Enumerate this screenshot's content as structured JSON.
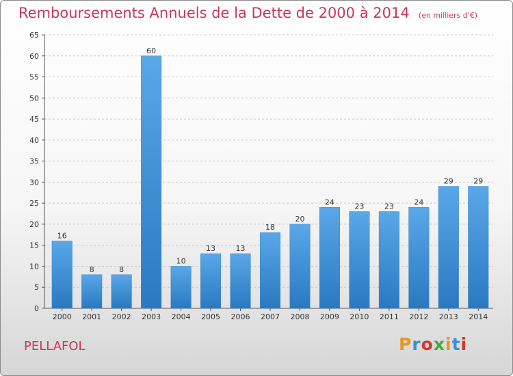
{
  "chart_data": {
    "type": "bar",
    "title": "Remboursements Annuels de la Dette de 2000 à 2014",
    "subtitle": "(en milliers d'€)",
    "categories": [
      "2000",
      "2001",
      "2002",
      "2003",
      "2004",
      "2005",
      "2006",
      "2007",
      "2008",
      "2009",
      "2010",
      "2011",
      "2012",
      "2013",
      "2014"
    ],
    "values": [
      16,
      8,
      8,
      60,
      10,
      13,
      13,
      18,
      20,
      24,
      23,
      23,
      24,
      29,
      29
    ],
    "ylim": [
      0,
      65
    ],
    "yticks": [
      0,
      5,
      10,
      15,
      20,
      25,
      30,
      35,
      40,
      45,
      50,
      55,
      60,
      65
    ],
    "grid": "horizontal-dashed",
    "xlabel": "",
    "ylabel": ""
  },
  "footer": {
    "commune": "PELLAFOL",
    "logo_text": "Proxiti"
  },
  "colors": {
    "title": "#c8385a",
    "bar_top": "#5aa8e8",
    "bar_bottom": "#2a78c0",
    "grid": "#c8c8c8",
    "logo": [
      "#e8961e",
      "#3a8fd8",
      "#d8342a",
      "#49a83e",
      "#e8961e",
      "#3a8fd8",
      "#d8342a"
    ]
  }
}
